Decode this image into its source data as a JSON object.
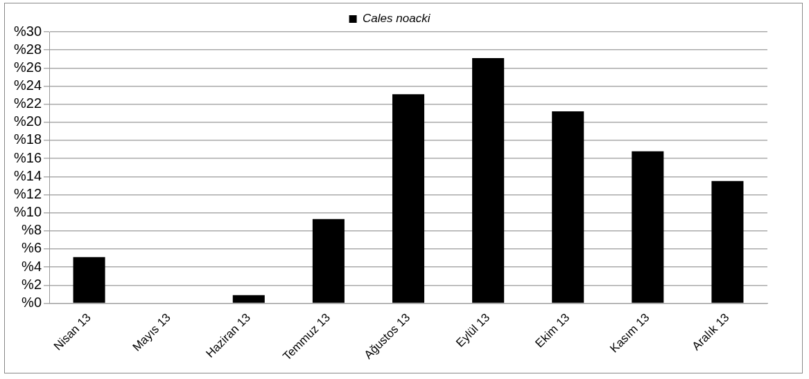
{
  "chart_data": {
    "type": "bar",
    "categories": [
      "Nisan 13",
      "Mayıs 13",
      "Haziran 13",
      "Temmuz 13",
      "Ağustos 13",
      "Eylül 13",
      "Ekim 13",
      "Kasım 13",
      "Aralık 13"
    ],
    "series": [
      {
        "name": "Cales noacki",
        "color": "#000000",
        "values": [
          5.1,
          0,
          0.9,
          9.3,
          23.1,
          27.1,
          21.2,
          16.8,
          13.5
        ]
      }
    ],
    "ylim": [
      0,
      30
    ],
    "yticks": [
      {
        "value": 0,
        "label": "%0"
      },
      {
        "value": 2,
        "label": "%2"
      },
      {
        "value": 4,
        "label": "%4"
      },
      {
        "value": 6,
        "label": "%6"
      },
      {
        "value": 8,
        "label": "%8"
      },
      {
        "value": 10,
        "label": "%10"
      },
      {
        "value": 12,
        "label": "%12"
      },
      {
        "value": 14,
        "label": "%14"
      },
      {
        "value": 16,
        "label": "%16"
      },
      {
        "value": 18,
        "label": "%18"
      },
      {
        "value": 20,
        "label": "%20"
      },
      {
        "value": 22,
        "label": "%22"
      },
      {
        "value": 24,
        "label": "%24"
      },
      {
        "value": 26,
        "label": "%26"
      },
      {
        "value": 28,
        "label": "%28"
      },
      {
        "value": 30,
        "label": "%30"
      }
    ],
    "grid": "y",
    "legend": "top"
  }
}
